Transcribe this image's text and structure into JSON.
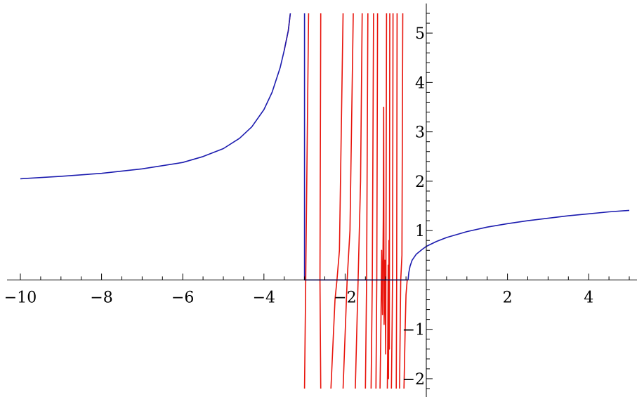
{
  "chart_data": {
    "type": "line",
    "title": "",
    "xlabel": "",
    "ylabel": "",
    "xlim": [
      -10,
      5
    ],
    "ylim": [
      -2.2,
      5.4
    ],
    "x_ticks": [
      {
        "value": -10,
        "label": "−10"
      },
      {
        "value": -8,
        "label": "−8"
      },
      {
        "value": -6,
        "label": "−6"
      },
      {
        "value": -4,
        "label": "−4"
      },
      {
        "value": -2,
        "label": "−2"
      },
      {
        "value": 2,
        "label": "2"
      },
      {
        "value": 4,
        "label": "4"
      }
    ],
    "y_ticks": [
      {
        "value": -2,
        "label": "−2"
      },
      {
        "value": -1,
        "label": "−1"
      },
      {
        "value": 1,
        "label": "1"
      },
      {
        "value": 2,
        "label": "2"
      },
      {
        "value": 3,
        "label": "3"
      },
      {
        "value": 4,
        "label": "4"
      },
      {
        "value": 5,
        "label": "5"
      }
    ],
    "x_minor_step": 0.5,
    "y_minor_step": 0.2,
    "colors": {
      "blue": "#1c1caf",
      "red": "#e8140c"
    },
    "series": [
      {
        "color": "blue",
        "points": [
          [
            -10,
            2.05
          ],
          [
            -9,
            2.1
          ],
          [
            -8,
            2.16
          ],
          [
            -7,
            2.25
          ],
          [
            -6,
            2.38
          ],
          [
            -5.5,
            2.5
          ],
          [
            -5,
            2.66
          ],
          [
            -4.6,
            2.87
          ],
          [
            -4.3,
            3.1
          ],
          [
            -4,
            3.45
          ],
          [
            -3.8,
            3.8
          ],
          [
            -3.6,
            4.3
          ],
          [
            -3.5,
            4.65
          ],
          [
            -3.4,
            5.05
          ],
          [
            -3.35,
            5.4
          ]
        ]
      },
      {
        "color": "blue",
        "points": [
          [
            -3.0,
            5.4
          ],
          [
            -3.0,
            0
          ],
          [
            -0.45,
            0
          ]
        ]
      },
      {
        "color": "blue",
        "points": [
          [
            -0.45,
            0
          ],
          [
            -0.43,
            0.15
          ],
          [
            -0.4,
            0.28
          ],
          [
            -0.35,
            0.4
          ],
          [
            -0.25,
            0.52
          ],
          [
            -0.1,
            0.62
          ],
          [
            0,
            0.68
          ],
          [
            0.25,
            0.78
          ],
          [
            0.5,
            0.86
          ],
          [
            1,
            0.98
          ],
          [
            1.5,
            1.07
          ],
          [
            2,
            1.14
          ],
          [
            2.5,
            1.2
          ],
          [
            3,
            1.25
          ],
          [
            3.5,
            1.3
          ],
          [
            4,
            1.34
          ],
          [
            4.5,
            1.38
          ],
          [
            5,
            1.41
          ]
        ]
      },
      {
        "color": "red",
        "points": [
          [
            -3.35,
            5.4
          ],
          [
            -3.4,
            5.05
          ],
          [
            -3.5,
            4.65
          ]
        ]
      },
      {
        "color": "red",
        "points": [
          [
            -3.0,
            -2.2
          ],
          [
            -2.97,
            0
          ],
          [
            -2.9,
            5.4
          ]
        ]
      },
      {
        "color": "red",
        "points": [
          [
            -2.6,
            -2.2
          ],
          [
            -2.62,
            0
          ],
          [
            -2.6,
            5.4
          ]
        ]
      },
      {
        "color": "red",
        "points": [
          [
            -2.35,
            -2.2
          ],
          [
            -2.25,
            -0.4
          ],
          [
            -2.2,
            0
          ],
          [
            -2.14,
            0.6
          ],
          [
            -2.05,
            5.4
          ]
        ]
      },
      {
        "color": "red",
        "points": [
          [
            -2.05,
            -2.2
          ],
          [
            -1.95,
            0
          ],
          [
            -1.88,
            1.0
          ],
          [
            -1.8,
            5.4
          ]
        ]
      },
      {
        "color": "red",
        "points": [
          [
            -1.75,
            -2.2
          ],
          [
            -1.68,
            0
          ],
          [
            -1.62,
            2.0
          ],
          [
            -1.58,
            5.4
          ]
        ]
      },
      {
        "color": "red",
        "points": [
          [
            -1.5,
            -2.2
          ],
          [
            -1.47,
            0
          ],
          [
            -1.44,
            5.4
          ]
        ]
      },
      {
        "color": "red",
        "points": [
          [
            -1.36,
            -2.2
          ],
          [
            -1.33,
            0
          ],
          [
            -1.3,
            5.4
          ]
        ]
      },
      {
        "color": "red",
        "points": [
          [
            -1.24,
            -2.2
          ],
          [
            -1.22,
            0
          ],
          [
            -1.2,
            5.4
          ]
        ]
      },
      {
        "color": "red",
        "points": [
          [
            -1.14,
            -2.2
          ],
          [
            -1.12,
            -1.0
          ],
          [
            -1.1,
            0.6
          ],
          [
            -1.08,
            -0.7
          ],
          [
            -1.06,
            1.2
          ],
          [
            -1.05,
            3.5
          ],
          [
            -1.04,
            -0.9
          ],
          [
            -1.02,
            0.4
          ],
          [
            -1.0,
            -1.5
          ],
          [
            -0.98,
            5.4
          ]
        ]
      },
      {
        "color": "red",
        "points": [
          [
            -0.96,
            -2.2
          ],
          [
            -0.95,
            -1.3
          ],
          [
            -0.94,
            0.3
          ],
          [
            -0.93,
            -2.0
          ],
          [
            -0.92,
            0.8
          ],
          [
            -0.91,
            -1.4
          ],
          [
            -0.9,
            5.4
          ]
        ]
      },
      {
        "color": "red",
        "points": [
          [
            -0.86,
            -2.2
          ],
          [
            -0.84,
            -0.8
          ],
          [
            -0.83,
            0.2
          ],
          [
            -0.82,
            5.4
          ]
        ]
      },
      {
        "color": "red",
        "points": [
          [
            -0.74,
            -2.2
          ],
          [
            -0.73,
            0
          ],
          [
            -0.72,
            5.4
          ]
        ]
      },
      {
        "color": "red",
        "points": [
          [
            -0.66,
            -2.2
          ],
          [
            -0.64,
            -0.7
          ],
          [
            -0.63,
            0
          ],
          [
            -0.6,
            0.5
          ],
          [
            -0.58,
            5.4
          ]
        ]
      },
      {
        "color": "red",
        "points": [
          [
            -0.55,
            -2.2
          ],
          [
            -0.52,
            -1.0
          ],
          [
            -0.5,
            -0.3
          ],
          [
            -0.47,
            0
          ]
        ]
      }
    ]
  }
}
